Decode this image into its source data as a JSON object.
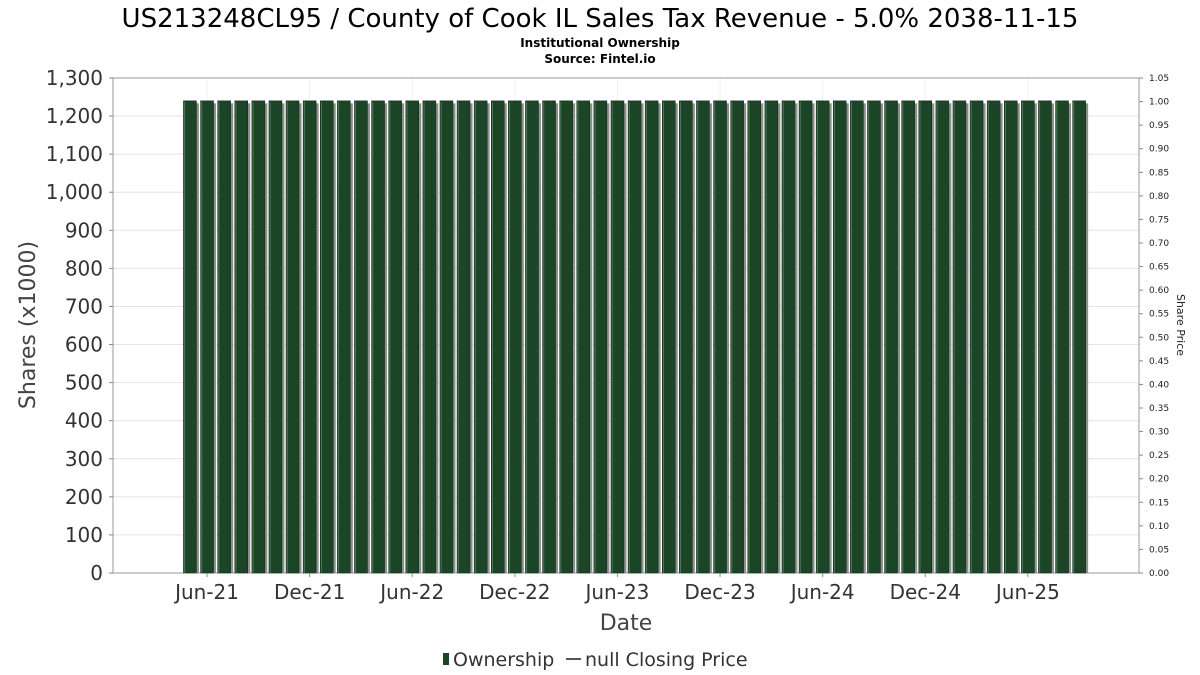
{
  "chart_data": {
    "type": "bar",
    "title": "US213248CL95 / County of Cook IL Sales Tax Revenue - 5.0% 2038-11-15",
    "subtitle_lines": [
      "Institutional Ownership",
      "Source: Fintel.io"
    ],
    "xlabel": "Date",
    "ylabel": "Shares (x1000)",
    "ylabel_right": "Share Price",
    "ylim": [
      0,
      1300
    ],
    "ylim_right": [
      0,
      1.05
    ],
    "y_ticks": [
      0,
      100,
      200,
      300,
      400,
      500,
      600,
      700,
      800,
      900,
      1000,
      1100,
      1200,
      1300
    ],
    "y_tick_labels": [
      "0",
      "100",
      "200",
      "300",
      "400",
      "500",
      "600",
      "700",
      "800",
      "900",
      "1,000",
      "1,100",
      "1,200",
      "1,300"
    ],
    "y_right_ticks": [
      0,
      0.05,
      0.1,
      0.15,
      0.2,
      0.25,
      0.3,
      0.35,
      0.4,
      0.45,
      0.5,
      0.55,
      0.6,
      0.65,
      0.7,
      0.75,
      0.8,
      0.85,
      0.9,
      0.95,
      1.0,
      1.05
    ],
    "y_right_tick_labels": [
      "0.00",
      "0.05",
      "0.10",
      "0.15",
      "0.20",
      "0.25",
      "0.30",
      "0.35",
      "0.40",
      "0.45",
      "0.50",
      "0.55",
      "0.60",
      "0.65",
      "0.70",
      "0.75",
      "0.80",
      "0.85",
      "0.90",
      "0.95",
      "1.00",
      "1.05"
    ],
    "x_tick_labels": [
      "Jun-21",
      "Dec-21",
      "Jun-22",
      "Dec-22",
      "Jun-23",
      "Dec-23",
      "Jun-24",
      "Dec-24",
      "Jun-25"
    ],
    "x_tick_months": [
      "2021-06",
      "2021-12",
      "2022-06",
      "2022-12",
      "2023-06",
      "2023-12",
      "2024-06",
      "2024-12",
      "2025-06"
    ],
    "x_range": [
      "2021-01",
      "2025-12"
    ],
    "bar_months": [
      "2021-05",
      "2021-06",
      "2021-07",
      "2021-08",
      "2021-09",
      "2021-10",
      "2021-11",
      "2021-12",
      "2022-01",
      "2022-02",
      "2022-03",
      "2022-04",
      "2022-05",
      "2022-06",
      "2022-07",
      "2022-08",
      "2022-09",
      "2022-10",
      "2022-11",
      "2022-12",
      "2023-01",
      "2023-02",
      "2023-03",
      "2023-04",
      "2023-05",
      "2023-06",
      "2023-07",
      "2023-08",
      "2023-09",
      "2023-10",
      "2023-11",
      "2023-12",
      "2024-01",
      "2024-02",
      "2024-03",
      "2024-04",
      "2024-05",
      "2024-06",
      "2024-07",
      "2024-08",
      "2024-09",
      "2024-10",
      "2024-11",
      "2024-12",
      "2025-01",
      "2025-02",
      "2025-03",
      "2025-04",
      "2025-05",
      "2025-06",
      "2025-07",
      "2025-08",
      "2025-09"
    ],
    "series": [
      {
        "name": "Ownership",
        "color": "#1c4426",
        "values": [
          1240,
          1240,
          1240,
          1240,
          1240,
          1240,
          1240,
          1240,
          1240,
          1240,
          1240,
          1240,
          1240,
          1240,
          1240,
          1240,
          1240,
          1240,
          1240,
          1240,
          1240,
          1240,
          1240,
          1240,
          1240,
          1240,
          1240,
          1240,
          1240,
          1240,
          1240,
          1240,
          1240,
          1240,
          1240,
          1240,
          1240,
          1240,
          1240,
          1240,
          1240,
          1240,
          1240,
          1240,
          1240,
          1240,
          1240,
          1240,
          1240,
          1240,
          1240,
          1240,
          1240
        ]
      },
      {
        "name": "null Closing Price",
        "color": "#555555",
        "values": []
      }
    ],
    "grid": true,
    "legend": "bottom-center"
  }
}
